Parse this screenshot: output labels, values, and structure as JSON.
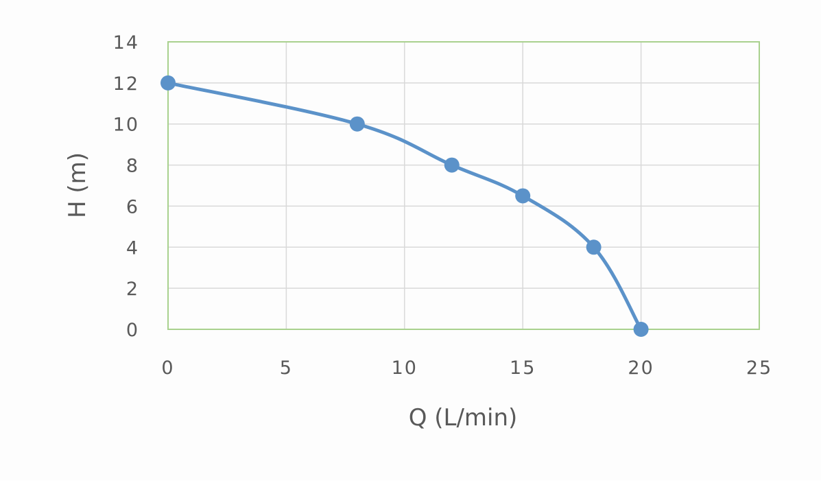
{
  "chart_data": {
    "type": "scatter",
    "line": "smooth",
    "title": "",
    "xlabel": "Q (L/min)",
    "ylabel": "H (m)",
    "xlim": [
      0,
      25
    ],
    "ylim": [
      0,
      14
    ],
    "x_ticks": [
      0,
      5,
      10,
      15,
      20,
      25
    ],
    "y_ticks": [
      0,
      2,
      4,
      6,
      8,
      10,
      12,
      14
    ],
    "x_tick_labels": [
      "0",
      "5",
      "10",
      "15",
      "20",
      "25"
    ],
    "y_tick_labels": [
      "0",
      "2",
      "4",
      "6",
      "8",
      "10",
      "12",
      "14"
    ],
    "grid": true,
    "legend": "none",
    "series": [
      {
        "x": [
          0,
          8,
          12,
          15,
          18,
          20
        ],
        "y": [
          12,
          10,
          8,
          6.5,
          4,
          0
        ]
      }
    ],
    "colors": {
      "series": "#5b92c9",
      "grid": "#d9d9d9",
      "plot_border": "#a9d18e",
      "text": "#595959"
    }
  }
}
